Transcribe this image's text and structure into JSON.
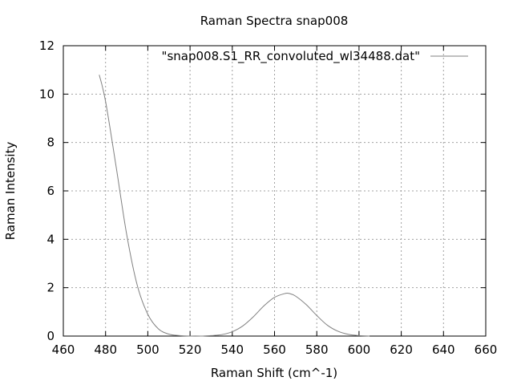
{
  "chart_data": {
    "type": "line",
    "title": "Raman Spectra snap008",
    "xlabel": "Raman Shift (cm^-1)",
    "ylabel": "Raman Intensity",
    "xlim": [
      460,
      660
    ],
    "ylim": [
      0,
      12
    ],
    "x_ticks": [
      460,
      480,
      500,
      520,
      540,
      560,
      580,
      600,
      620,
      640,
      660
    ],
    "y_ticks": [
      0,
      2,
      4,
      6,
      8,
      10,
      12
    ],
    "grid": true,
    "legend_position": "top-right",
    "series": [
      {
        "name": "\"snap008.S1_RR_convoluted_wl34488.dat\"",
        "color": "#808080",
        "x": [
          477,
          480,
          485,
          490,
          495,
          500,
          505,
          510,
          515,
          520,
          525,
          530,
          535,
          540,
          545,
          550,
          555,
          560,
          565,
          567,
          570,
          575,
          580,
          585,
          590,
          595,
          600,
          605
        ],
        "y": [
          10.8,
          9.7,
          7.0,
          4.2,
          2.1,
          0.9,
          0.3,
          0.08,
          0.02,
          0.0,
          0.0,
          0.02,
          0.06,
          0.18,
          0.42,
          0.8,
          1.25,
          1.6,
          1.76,
          1.76,
          1.65,
          1.3,
          0.85,
          0.45,
          0.2,
          0.07,
          0.02,
          0.0
        ]
      }
    ]
  }
}
